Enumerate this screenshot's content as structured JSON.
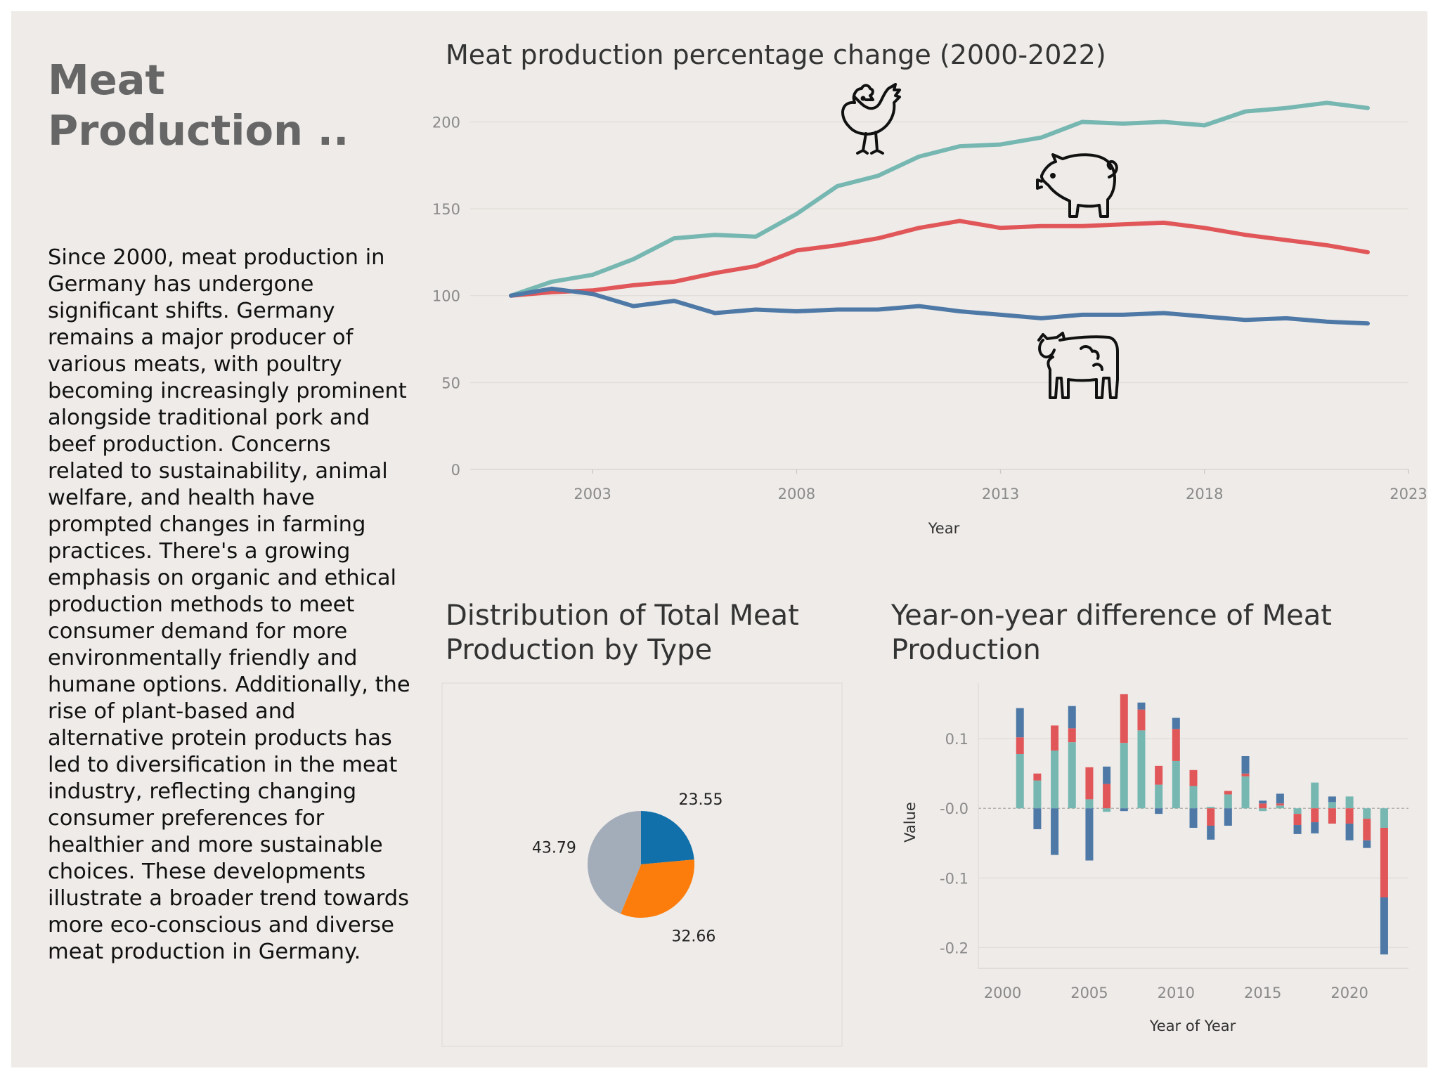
{
  "sidebar": {
    "title": "Meat Production ..",
    "body": "Since 2000, meat production in Germany has undergone significant shifts. Germany remains a major producer of various meats, with poultry becoming increasingly prominent alongside traditional pork and beef production. Concerns related to sustainability, animal welfare, and health have prompted changes in farming practices. There's a growing emphasis on organic and ethical production methods to meet consumer demand for more environmentally friendly and humane options. Additionally, the rise of plant-based and alternative protein products has led to diversification in the meat industry, reflecting changing consumer preferences for healthier and more sustainable choices. These developments illustrate a broader trend towards more eco-conscious and diverse meat production in Germany."
  },
  "icons": [
    "chicken-icon",
    "pig-icon",
    "cow-icon"
  ],
  "chart_data": [
    {
      "type": "line",
      "title": "Meat production percentage change (2000-2022)",
      "xlabel": "Year",
      "ylabel": "",
      "x_ticks": [
        2003,
        2008,
        2013,
        2018,
        2023
      ],
      "y_ticks": [
        0,
        50,
        100,
        150,
        200
      ],
      "xlim": [
        2000,
        2023
      ],
      "ylim": [
        0,
        220
      ],
      "grid": true,
      "x": [
        2001,
        2002,
        2003,
        2004,
        2005,
        2006,
        2007,
        2008,
        2009,
        2010,
        2011,
        2012,
        2013,
        2014,
        2015,
        2016,
        2017,
        2018,
        2019,
        2020,
        2021,
        2022
      ],
      "series": [
        {
          "color": "#76b7b2",
          "values": [
            100,
            108,
            112,
            121,
            133,
            135,
            134,
            147,
            163,
            169,
            180,
            186,
            187,
            191,
            200,
            199,
            200,
            198,
            206,
            208,
            211,
            208
          ]
        },
        {
          "color": "#e15759",
          "values": [
            100,
            102,
            103,
            106,
            108,
            113,
            117,
            126,
            129,
            133,
            139,
            143,
            139,
            140,
            140,
            141,
            142,
            139,
            135,
            132,
            129,
            125
          ]
        },
        {
          "color": "#4e79a7",
          "values": [
            100,
            104,
            101,
            94,
            97,
            90,
            92,
            91,
            92,
            92,
            94,
            91,
            89,
            87,
            89,
            89,
            90,
            88,
            86,
            87,
            85,
            84
          ]
        }
      ]
    },
    {
      "type": "pie",
      "title": "Distribution of Total Meat Production by Type",
      "slices": [
        {
          "value": 23.55,
          "label": "23.55",
          "color": "#1170aa"
        },
        {
          "value": 32.66,
          "label": "32.66",
          "color": "#fc7d0b"
        },
        {
          "value": 43.79,
          "label": "43.79",
          "color": "#a3acb9"
        }
      ]
    },
    {
      "type": "bar",
      "stacked": true,
      "title": "Year-on-year difference of Meat Production",
      "xlabel": "Year of Year",
      "ylabel": "Value",
      "x_ticks": [
        2000,
        2005,
        2010,
        2015,
        2020
      ],
      "y_ticks": [
        0.1,
        -0.0,
        -0.1,
        -0.2
      ],
      "y_tick_labels": [
        "0.1",
        "-0.0",
        "-0.1",
        "-0.2"
      ],
      "xlim": [
        1998.6,
        2023.4
      ],
      "ylim": [
        -0.23,
        0.18
      ],
      "grid": true,
      "x": [
        2001,
        2002,
        2003,
        2004,
        2005,
        2006,
        2007,
        2008,
        2009,
        2010,
        2011,
        2012,
        2013,
        2014,
        2015,
        2016,
        2017,
        2018,
        2019,
        2020,
        2021,
        2022
      ],
      "series": [
        {
          "color": "#76b7b2",
          "values": [
            0.078,
            0.04,
            0.083,
            0.095,
            0.013,
            -0.005,
            0.094,
            0.112,
            0.034,
            0.068,
            0.032,
            0.002,
            0.02,
            0.046,
            -0.004,
            0.004,
            -0.008,
            0.037,
            0.009,
            0.017,
            -0.015,
            -0.028
          ]
        },
        {
          "color": "#e15759",
          "values": [
            0.024,
            0.01,
            0.036,
            0.02,
            0.046,
            0.035,
            0.07,
            0.03,
            0.027,
            0.046,
            0.023,
            -0.025,
            0.005,
            0.004,
            0.007,
            0.003,
            -0.016,
            -0.02,
            -0.022,
            -0.022,
            -0.031,
            -0.1
          ]
        },
        {
          "color": "#4e79a7",
          "values": [
            0.042,
            -0.03,
            -0.067,
            0.032,
            -0.075,
            0.025,
            -0.004,
            0.01,
            -0.008,
            0.016,
            -0.028,
            -0.02,
            -0.025,
            0.025,
            0.004,
            0.014,
            -0.013,
            -0.016,
            0.008,
            -0.024,
            -0.011,
            -0.082
          ]
        }
      ]
    }
  ]
}
